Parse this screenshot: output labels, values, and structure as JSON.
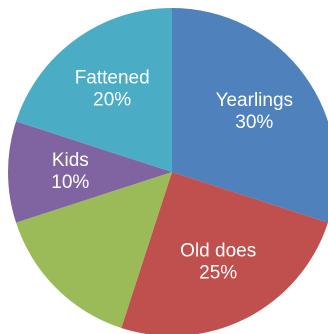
{
  "chart_data": {
    "type": "pie",
    "start_angle_deg": 0,
    "direction": "clockwise",
    "slices": [
      {
        "label": "Yearlings",
        "value": 30,
        "value_label": "30%",
        "color": "#4f81bd"
      },
      {
        "label": "Old does",
        "value": 25,
        "value_label": "25%",
        "color": "#c0504d"
      },
      {
        "label": "",
        "value": 15,
        "value_label": "",
        "color": "#9bbb59"
      },
      {
        "label": "Kids",
        "value": 10,
        "value_label": "10%",
        "color": "#8064a2"
      },
      {
        "label": "Fattened",
        "value": 20,
        "value_label": "20%",
        "color": "#4bacc6"
      }
    ]
  }
}
